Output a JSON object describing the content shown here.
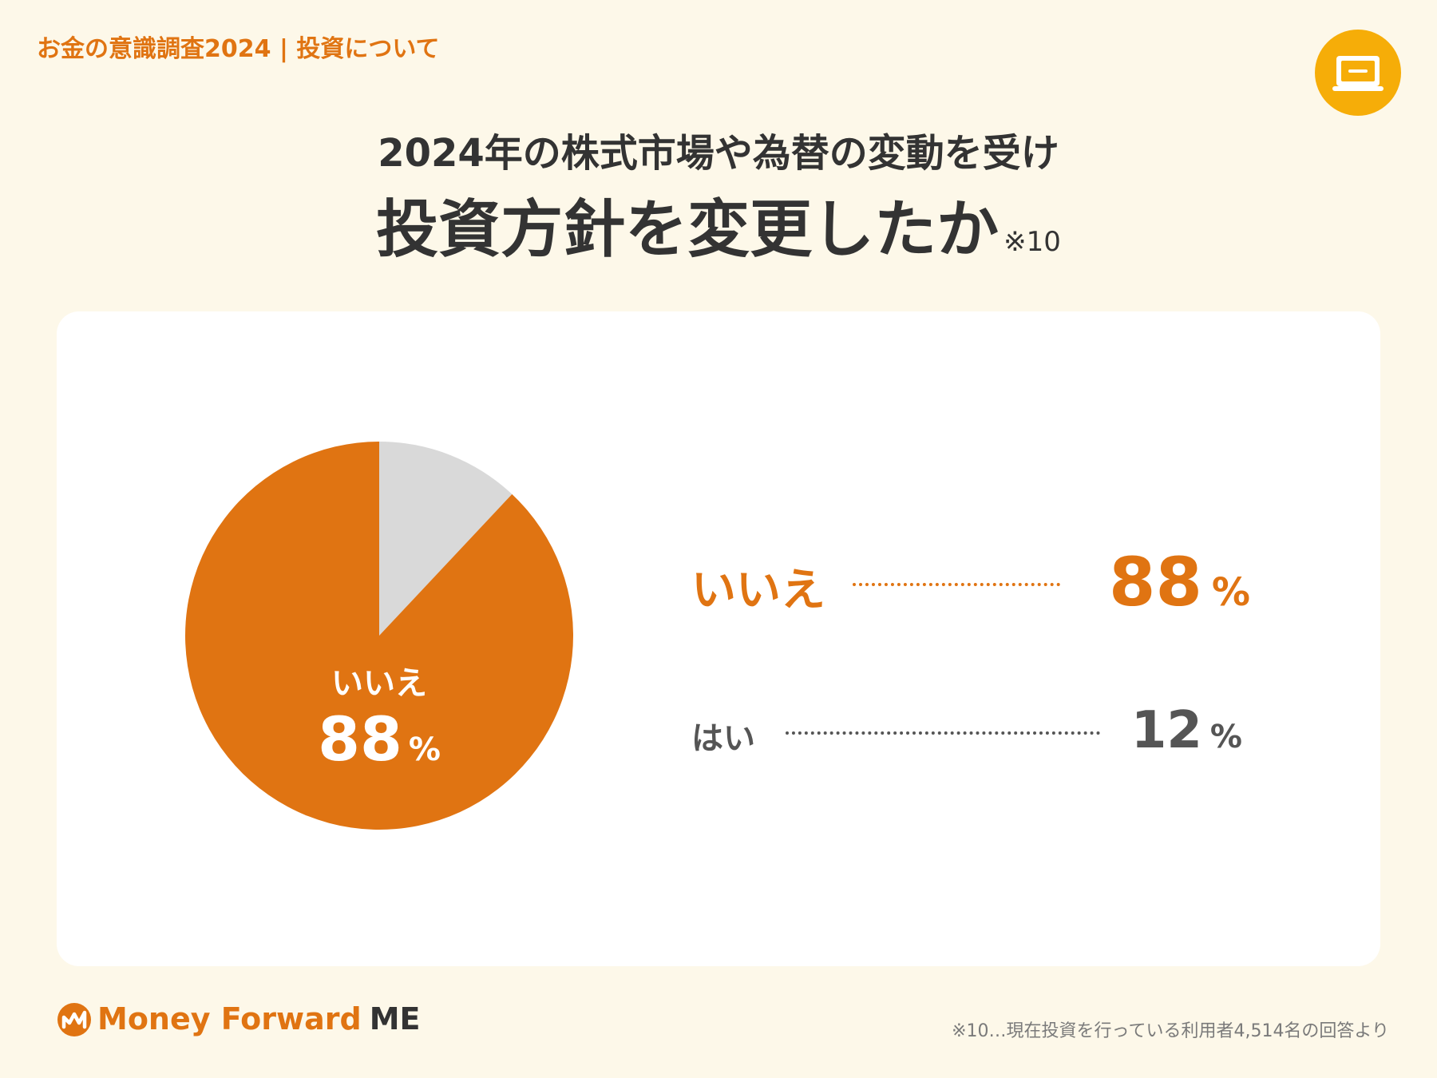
{
  "header": {
    "label": "お金の意識調査2024 | 投資について",
    "badge_icon": "screen-icon"
  },
  "title": {
    "sub": "2024年の株式市場や為替の変動を受け",
    "main": "投資方針を変更したか",
    "note_ref": "※10"
  },
  "chart_data": {
    "type": "pie",
    "categories": [
      "いいえ",
      "はい"
    ],
    "values": [
      88,
      12
    ],
    "unit": "%",
    "colors": [
      "#e07412",
      "#d9d9d9"
    ],
    "slice_label": {
      "label": "いいえ",
      "value": "88",
      "unit": "%"
    }
  },
  "legend": [
    {
      "label": "いいえ",
      "value": "88",
      "unit": "%",
      "color": "#e07412"
    },
    {
      "label": "はい",
      "value": "12",
      "unit": "%",
      "color": "#555555"
    }
  ],
  "brand": {
    "name": "Money Forward",
    "suffix": "ME",
    "icon": "money-forward-logo-icon"
  },
  "footnote": "※10…現在投資を行っている利用者4,514名の回答より",
  "colors": {
    "background": "#fdf8e9",
    "accent": "#e07412",
    "badge": "#f6ad08",
    "text": "#333333"
  }
}
